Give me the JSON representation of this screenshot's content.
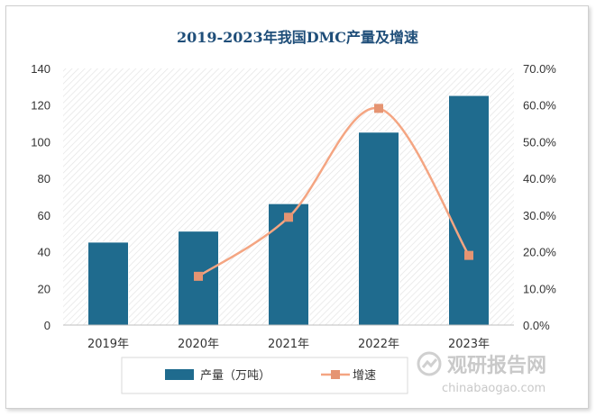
{
  "chart_data": {
    "type": "bar",
    "title": "2019-2023年我国DMC产量及增速",
    "categories": [
      "2019年",
      "2020年",
      "2021年",
      "2022年",
      "2023年"
    ],
    "series": [
      {
        "name": "产量（万吨）",
        "type": "bar",
        "axis": "left",
        "color": "#1f6b8e",
        "values": [
          45,
          51,
          66,
          105,
          125
        ]
      },
      {
        "name": "增速",
        "type": "line",
        "axis": "right",
        "color": "#f4a582",
        "values": [
          null,
          13.3,
          29.4,
          59.1,
          19.0
        ]
      }
    ],
    "y_left": {
      "min": 0,
      "max": 140,
      "step": 20,
      "tick_labels": [
        "0",
        "20",
        "40",
        "60",
        "80",
        "100",
        "120",
        "140"
      ]
    },
    "y_right": {
      "min": 0,
      "max": 70,
      "step": 10,
      "tick_labels": [
        "0.0%",
        "10.0%",
        "20.0%",
        "30.0%",
        "40.0%",
        "50.0%",
        "60.0%",
        "70.0%"
      ]
    },
    "grid": false,
    "legend": "bottom"
  },
  "watermark": {
    "text_cn": "观研报告网",
    "text_en": "chinabaogao.com"
  }
}
